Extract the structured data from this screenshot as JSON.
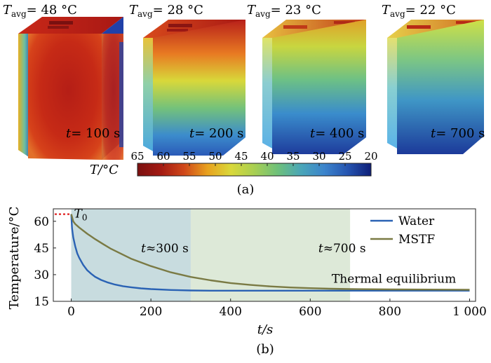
{
  "figure_a": {
    "panels": [
      {
        "tavg_prefix": "T",
        "tavg_sub": "avg",
        "tavg_value": "= 48 °C",
        "time_prefix": "t",
        "time_value": "= 100 s"
      },
      {
        "tavg_prefix": "T",
        "tavg_sub": "avg",
        "tavg_value": "= 28 °C",
        "time_prefix": "t",
        "time_value": "= 200 s"
      },
      {
        "tavg_prefix": "T",
        "tavg_sub": "avg",
        "tavg_value": "= 23 °C",
        "time_prefix": "t",
        "time_value": "= 400 s"
      },
      {
        "tavg_prefix": "T",
        "tavg_sub": "avg",
        "tavg_value": "= 22 °C",
        "time_prefix": "t",
        "time_value": "= 700 s"
      }
    ],
    "colorbar": {
      "label": "T/°C",
      "ticks": [
        "65",
        "60",
        "55",
        "50",
        "45",
        "40",
        "35",
        "30",
        "25",
        "20"
      ],
      "range": [
        65,
        20
      ]
    },
    "caption": "(a)"
  },
  "chart_data": {
    "type": "line",
    "ylabel": "Temperature/°C",
    "xlabel": "t/s",
    "xlim": [
      -45,
      1015
    ],
    "ylim": [
      15,
      67
    ],
    "xticks": [
      0,
      200,
      400,
      600,
      800,
      1000
    ],
    "xtick_labels": [
      "0",
      "200",
      "400",
      "600",
      "800",
      "1 000"
    ],
    "yticks": [
      15,
      30,
      45,
      60
    ],
    "ytick_labels": [
      "15",
      "30",
      "45",
      "60"
    ],
    "shaded_regions": [
      {
        "x0": 0,
        "x1": 300,
        "color": "#c8dcdf"
      },
      {
        "x0": 300,
        "x1": 700,
        "color": "#dde9d8"
      }
    ],
    "reference": {
      "label": "T0",
      "y": 64,
      "x0": -45,
      "x1": 0,
      "color": "#e02020"
    },
    "annotations": [
      {
        "text": "t≈300 s",
        "x": 235,
        "y": 42.5
      },
      {
        "text": "t≈700 s",
        "x": 680,
        "y": 42.5
      },
      {
        "text": "Thermal equilibrium",
        "x": 810,
        "y": 25.5
      }
    ],
    "legend": "top-right",
    "series": [
      {
        "name": "Water",
        "color": "#2a62b4",
        "x": [
          0,
          2,
          5,
          10,
          15,
          20,
          30,
          40,
          50,
          60,
          75,
          90,
          110,
          130,
          150,
          175,
          200,
          250,
          300,
          350,
          400,
          500,
          600,
          700,
          800,
          900,
          1000
        ],
        "y": [
          64,
          56,
          51,
          46,
          42,
          39.5,
          35.5,
          32.5,
          30.5,
          28.8,
          27,
          25.7,
          24.4,
          23.5,
          22.9,
          22.3,
          21.9,
          21.4,
          21.1,
          21,
          21,
          21,
          21,
          21,
          21,
          21,
          21
        ]
      },
      {
        "name": "MSTF",
        "color": "#7a7a44",
        "x": [
          0,
          5,
          10,
          20,
          40,
          60,
          80,
          100,
          150,
          200,
          250,
          300,
          350,
          400,
          450,
          500,
          550,
          600,
          650,
          700,
          800,
          900,
          1000
        ],
        "y": [
          64,
          60,
          58.5,
          56.5,
          53,
          50,
          47.2,
          44.5,
          39,
          34.8,
          31.3,
          28.7,
          26.8,
          25.3,
          24.2,
          23.4,
          22.8,
          22.4,
          22.1,
          21.9,
          21.7,
          21.6,
          21.5
        ]
      }
    ],
    "caption": "(b)"
  }
}
